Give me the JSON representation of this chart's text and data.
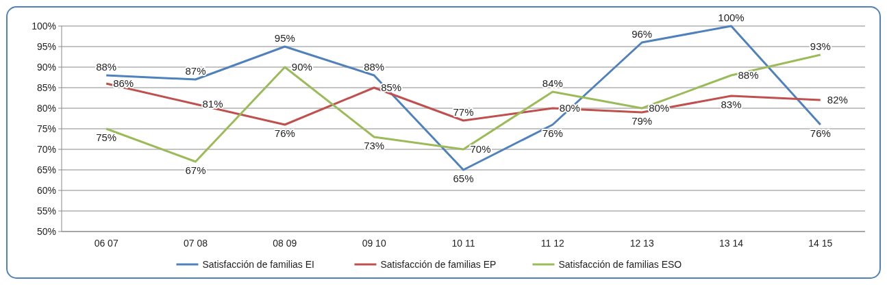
{
  "chart_data": {
    "type": "line",
    "categories": [
      "06 07",
      "07 08",
      "08  09",
      "09 10",
      "10 11",
      "11 12",
      "12 13",
      "13 14",
      "14 15"
    ],
    "series": [
      {
        "name": "Satisfacción de familias EI",
        "color": "#4f81bd",
        "values": [
          88,
          87,
          95,
          88,
          65,
          76,
          96,
          100,
          76
        ],
        "value_labels": [
          "88%",
          "87%",
          "95%",
          "88%",
          "65%",
          "76%",
          "96%",
          "100%",
          "76%"
        ]
      },
      {
        "name": "Satisfacción de familias EP",
        "color": "#c0504d",
        "values": [
          86,
          81,
          76,
          85,
          77,
          80,
          79,
          83,
          82
        ],
        "value_labels": [
          "86%",
          "81%",
          "76%",
          "85%",
          "77%",
          "80%",
          "79%",
          "83%",
          "82%"
        ]
      },
      {
        "name": "Satisfacción de familias ESO",
        "color": "#9bbb59",
        "values": [
          75,
          67,
          90,
          73,
          70,
          84,
          80,
          88,
          93
        ],
        "value_labels": [
          "75%",
          "67%",
          "90%",
          "73%",
          "70%",
          "84%",
          "80%",
          "88%",
          "93%"
        ]
      }
    ],
    "ylim": [
      50,
      100
    ],
    "yticks": [
      {
        "value": 50,
        "label": "50%"
      },
      {
        "value": 55,
        "label": "55%"
      },
      {
        "value": 60,
        "label": "60%"
      },
      {
        "value": 65,
        "label": "65%"
      },
      {
        "value": 70,
        "label": "70%"
      },
      {
        "value": 75,
        "label": "75%"
      },
      {
        "value": 80,
        "label": "80%"
      },
      {
        "value": 85,
        "label": "85%"
      },
      {
        "value": 90,
        "label": "90%"
      },
      {
        "value": 95,
        "label": "95%"
      },
      {
        "value": 100,
        "label": "100%"
      }
    ],
    "grid": "y",
    "legend": "bottom",
    "marker": "none",
    "line_style": "solid"
  }
}
